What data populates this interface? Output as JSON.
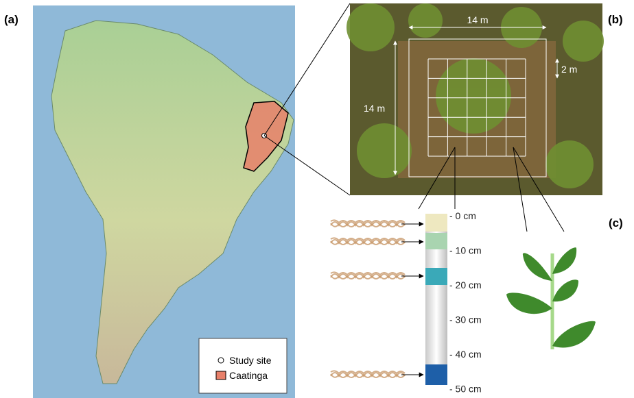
{
  "panels": {
    "a": {
      "label": "(a)",
      "legend": [
        "Study site",
        "Caatinga"
      ]
    },
    "b": {
      "label": "(b)",
      "plot_width": "14 m",
      "plot_height": "14 m",
      "cell_size": "2 m"
    },
    "c": {
      "label": "(c)",
      "depths": [
        "- 0 cm",
        "- 10 cm",
        "- 20 cm",
        "- 30 cm",
        "- 40 cm",
        "- 50 cm"
      ]
    }
  }
}
